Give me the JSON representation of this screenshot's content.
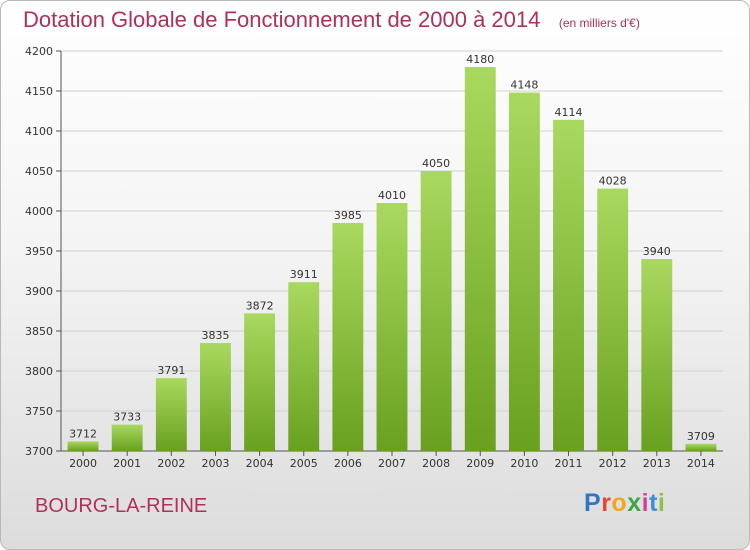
{
  "title": "Dotation Globale de Fonctionnement de 2000 à 2014",
  "subtitle": "(en milliers d'€)",
  "town": "BOURG-LA-REINE",
  "logo": {
    "text": "Proxiti",
    "letter_colors": [
      "#2f77c2",
      "#e8462f",
      "#f2a51f",
      "#3aa744",
      "#d63f96",
      "#3b8fd6",
      "#8cc43f"
    ]
  },
  "chart_data": {
    "type": "bar",
    "title": "Dotation Globale de Fonctionnement de 2000 à 2014",
    "subtitle": "(en milliers d'€)",
    "categories": [
      "2000",
      "2001",
      "2002",
      "2003",
      "2004",
      "2005",
      "2006",
      "2007",
      "2008",
      "2009",
      "2010",
      "2011",
      "2012",
      "2013",
      "2014"
    ],
    "values": [
      3712,
      3733,
      3791,
      3835,
      3872,
      3911,
      3985,
      4010,
      4050,
      4180,
      4148,
      4114,
      4028,
      3940,
      3709
    ],
    "ylim": [
      3700,
      4200
    ],
    "yticks": [
      3700,
      3750,
      3800,
      3850,
      3900,
      3950,
      4000,
      4050,
      4100,
      4150,
      4200
    ],
    "grid": true,
    "bar_color": "#8cc63f",
    "bar_color_light": "#a9d95f",
    "bar_color_dark": "#69a01f"
  }
}
